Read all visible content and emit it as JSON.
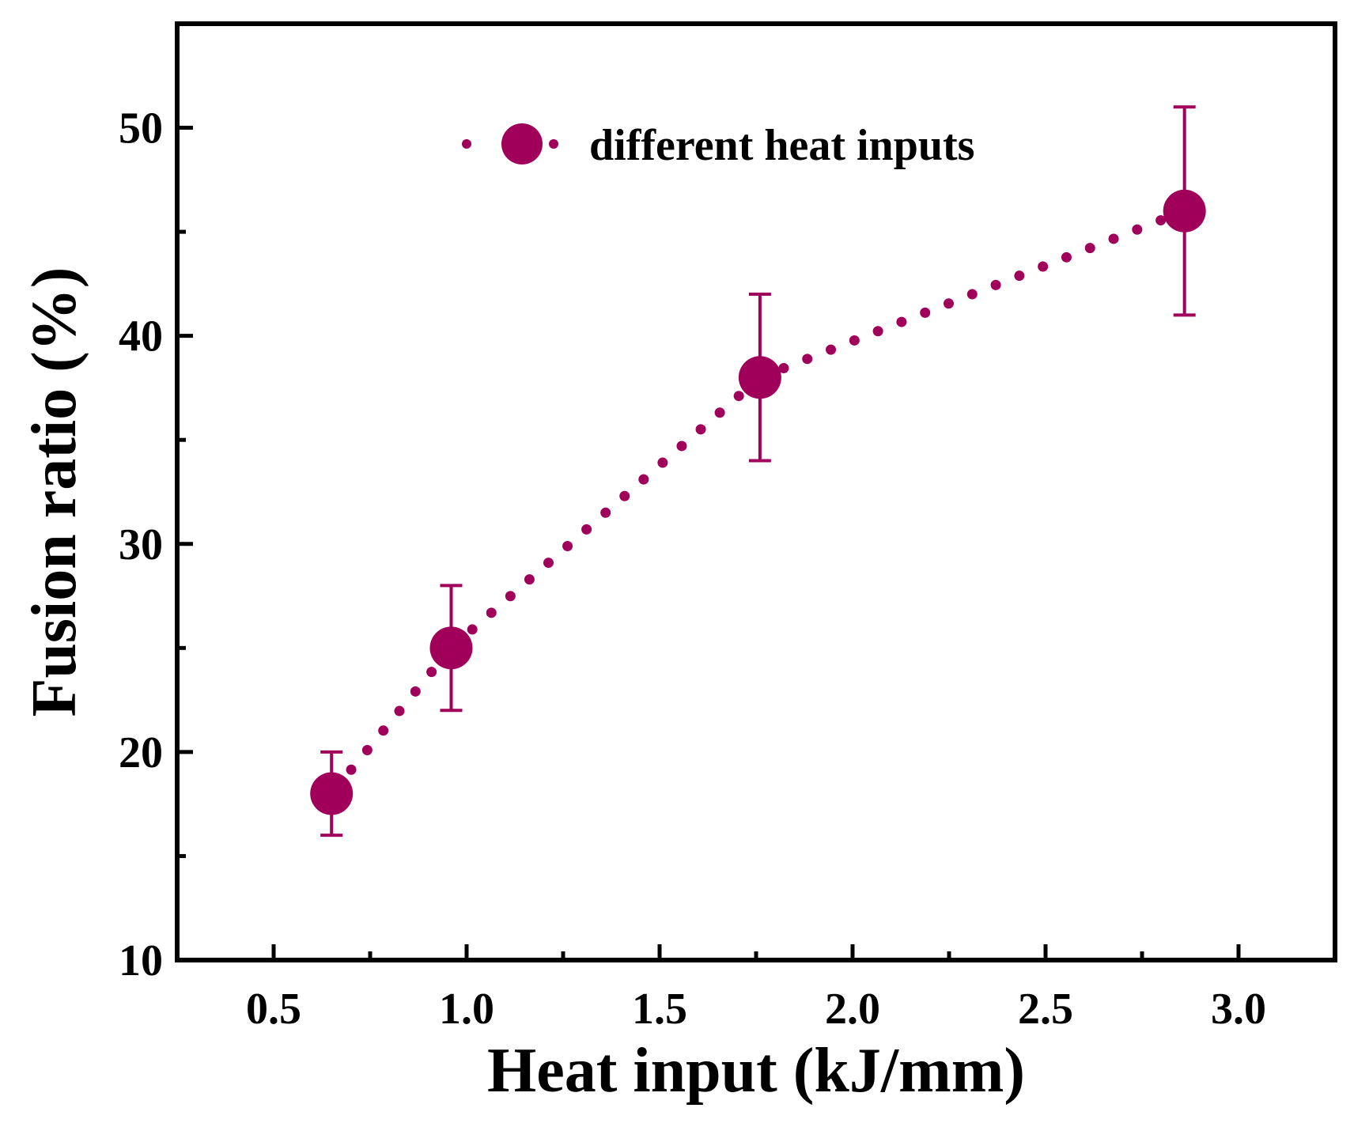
{
  "chart_data": {
    "type": "scatter",
    "title": "",
    "xlabel": "Heat input (kJ/mm)",
    "ylabel": "Fusion ratio (%)",
    "xlim": [
      0.25,
      3.25
    ],
    "ylim": [
      10,
      55
    ],
    "xticks": [
      0.5,
      1.0,
      1.5,
      2.0,
      2.5,
      3.0
    ],
    "xtick_labels": [
      "0.5",
      "1.0",
      "1.5",
      "2.0",
      "2.5",
      "3.0"
    ],
    "xminor": [
      0.75,
      1.25,
      1.75,
      2.25,
      2.75
    ],
    "yticks": [
      10,
      20,
      30,
      40,
      50
    ],
    "ytick_labels": [
      "10",
      "20",
      "30",
      "40",
      "50"
    ],
    "yminor": [
      15,
      25,
      35,
      45
    ],
    "grid": false,
    "legend_position": "top-right",
    "series": [
      {
        "name": "different heat inputs",
        "color": "#a0005a",
        "line_style": "dotted",
        "x": [
          0.65,
          0.96,
          1.76,
          2.86
        ],
        "y": [
          18,
          25,
          38,
          46
        ],
        "error_upper": [
          20,
          28,
          42,
          51
        ],
        "error_lower": [
          16,
          22,
          34,
          41
        ]
      }
    ]
  }
}
